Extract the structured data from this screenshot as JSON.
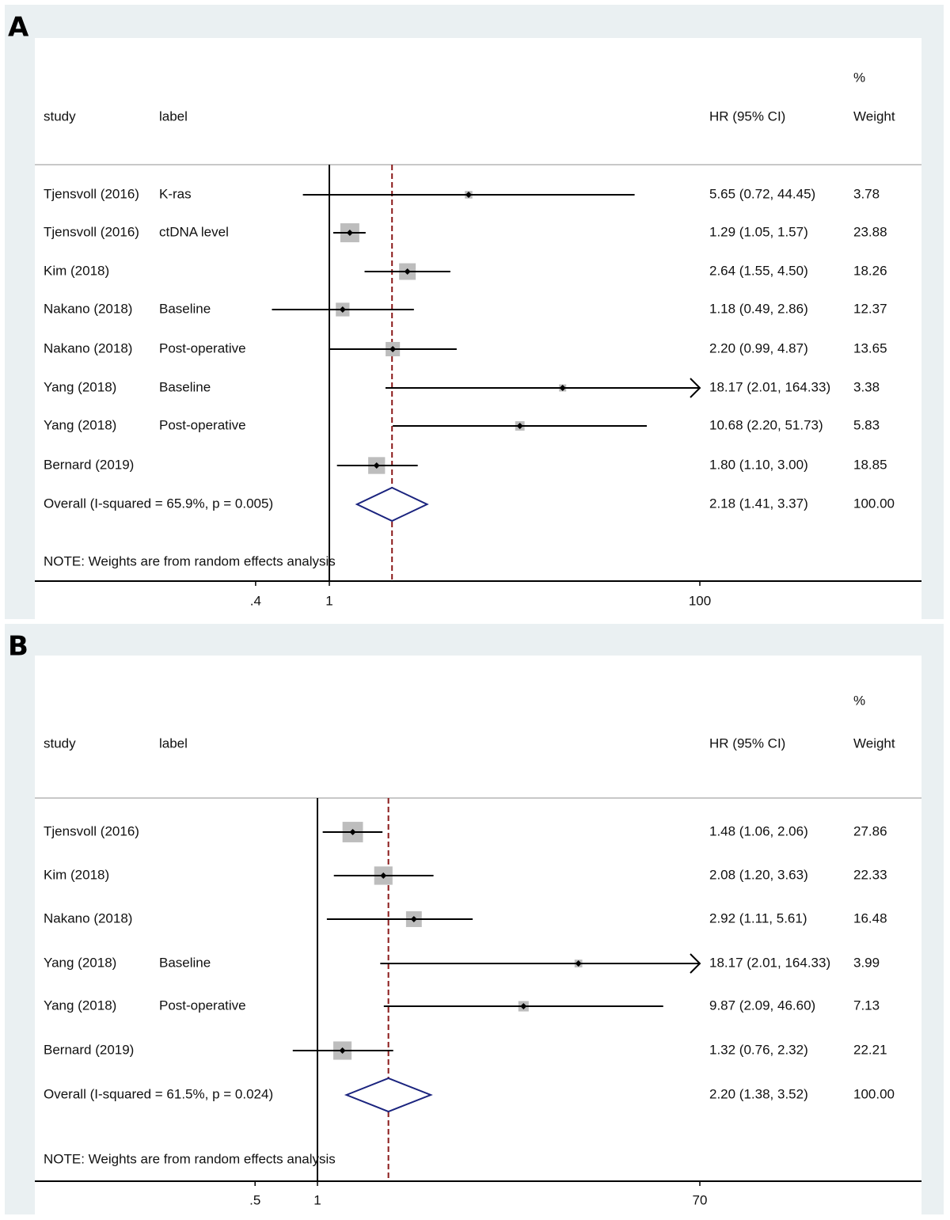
{
  "chart_data": [
    {
      "type": "forest",
      "panel_label": "A",
      "x_scale": "log",
      "xticks": [
        0.4,
        1,
        100
      ],
      "xtick_labels": [
        ".4",
        "1",
        "100"
      ],
      "null_line": 1,
      "xlim": [
        0.4,
        100
      ],
      "headers": {
        "study": "study",
        "label": "label",
        "hr": "HR (95% CI)",
        "weight_top": "%",
        "weight": "Weight"
      },
      "rows": [
        {
          "study": "Tjensvoll (2016)",
          "label": "K-ras",
          "hr": 5.65,
          "lo": 0.72,
          "hi": 44.45,
          "hr_text": "5.65 (0.72, 44.45)",
          "weight": 3.78,
          "weight_text": "3.78"
        },
        {
          "study": "Tjensvoll (2016)",
          "label": "ctDNA level",
          "hr": 1.29,
          "lo": 1.05,
          "hi": 1.57,
          "hr_text": "1.29 (1.05, 1.57)",
          "weight": 23.88,
          "weight_text": "23.88"
        },
        {
          "study": "Kim (2018)",
          "label": "",
          "hr": 2.64,
          "lo": 1.55,
          "hi": 4.5,
          "hr_text": "2.64 (1.55, 4.50)",
          "weight": 18.26,
          "weight_text": "18.26"
        },
        {
          "study": "Nakano (2018)",
          "label": "Baseline",
          "hr": 1.18,
          "lo": 0.49,
          "hi": 2.86,
          "hr_text": "1.18 (0.49, 2.86)",
          "weight": 12.37,
          "weight_text": "12.37"
        },
        {
          "study": "Nakano (2018)",
          "label": "Post-operative",
          "hr": 2.2,
          "lo": 0.99,
          "hi": 4.87,
          "hr_text": "2.20 (0.99, 4.87)",
          "weight": 13.65,
          "weight_text": "13.65"
        },
        {
          "study": "Yang (2018)",
          "label": "Baseline",
          "hr": 18.17,
          "lo": 2.01,
          "hi": 164.33,
          "hr_text": "18.17 (2.01, 164.33)",
          "weight": 3.38,
          "weight_text": "3.38"
        },
        {
          "study": "Yang (2018)",
          "label": "Post-operative",
          "hr": 10.68,
          "lo": 2.2,
          "hi": 51.73,
          "hr_text": "10.68 (2.20, 51.73)",
          "weight": 5.83,
          "weight_text": "5.83"
        },
        {
          "study": "Bernard (2019)",
          "label": "",
          "hr": 1.8,
          "lo": 1.1,
          "hi": 3.0,
          "hr_text": "1.80 (1.10, 3.00)",
          "weight": 18.85,
          "weight_text": "18.85"
        }
      ],
      "overall": {
        "label": "Overall  (I-squared = 65.9%, p = 0.005)",
        "hr": 2.18,
        "lo": 1.41,
        "hi": 3.37,
        "hr_text": "2.18 (1.41, 3.37)",
        "weight_text": "100.00"
      },
      "note": "NOTE: Weights are from random effects analysis"
    },
    {
      "type": "forest",
      "panel_label": "B",
      "x_scale": "log",
      "xticks": [
        0.5,
        1,
        70
      ],
      "xtick_labels": [
        ".5",
        "1",
        "70"
      ],
      "null_line": 1,
      "xlim": [
        0.5,
        70
      ],
      "headers": {
        "study": "study",
        "label": "label",
        "hr": "HR (95% CI)",
        "weight_top": "%",
        "weight": "Weight"
      },
      "rows": [
        {
          "study": "Tjensvoll (2016)",
          "label": "",
          "hr": 1.48,
          "lo": 1.06,
          "hi": 2.06,
          "hr_text": "1.48 (1.06, 2.06)",
          "weight": 27.86,
          "weight_text": "27.86"
        },
        {
          "study": "Kim (2018)",
          "label": "",
          "hr": 2.08,
          "lo": 1.2,
          "hi": 3.63,
          "hr_text": "2.08 (1.20, 3.63)",
          "weight": 22.33,
          "weight_text": "22.33"
        },
        {
          "study": "Nakano (2018)",
          "label": "",
          "hr": 2.92,
          "lo": 1.11,
          "hi": 5.61,
          "hr_text": "2.92 (1.11, 5.61)",
          "weight": 16.48,
          "weight_text": "16.48"
        },
        {
          "study": "Yang (2018)",
          "label": "Baseline",
          "hr": 18.17,
          "lo": 2.01,
          "hi": 164.33,
          "hr_text": "18.17 (2.01, 164.33)",
          "weight": 3.99,
          "weight_text": "3.99"
        },
        {
          "study": "Yang (2018)",
          "label": "Post-operative",
          "hr": 9.87,
          "lo": 2.09,
          "hi": 46.6,
          "hr_text": "9.87 (2.09, 46.60)",
          "weight": 7.13,
          "weight_text": "7.13"
        },
        {
          "study": "Bernard (2019)",
          "label": "",
          "hr": 1.32,
          "lo": 0.76,
          "hi": 2.32,
          "hr_text": "1.32 (0.76, 2.32)",
          "weight": 22.21,
          "weight_text": "22.21"
        }
      ],
      "overall": {
        "label": "Overall  (I-squared = 61.5%, p = 0.024)",
        "hr": 2.2,
        "lo": 1.38,
        "hi": 3.52,
        "hr_text": "2.20 (1.38, 3.52)",
        "weight_text": "100.00"
      },
      "note": "NOTE: Weights are from random effects analysis"
    }
  ],
  "colors": {
    "background": "#eaf0f2",
    "plot_area": "#ffffff",
    "square": "#bdbdbd",
    "ci_line": "#000000",
    "overall_diamond": "#1a237e",
    "pooled_line": "#8b1a1a",
    "separator": "#c8c8c8"
  }
}
